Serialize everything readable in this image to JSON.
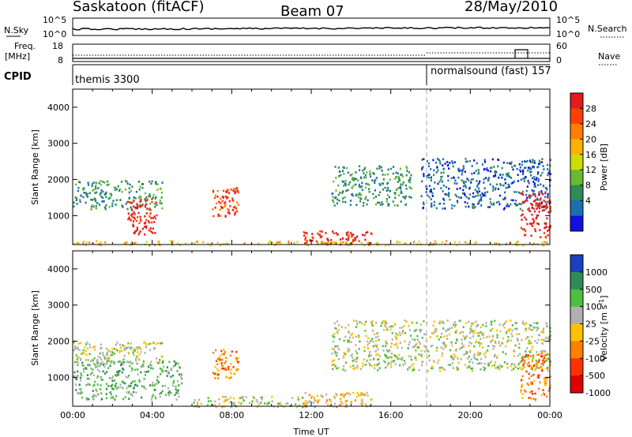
{
  "header": {
    "station": "Saskatoon (fitACF)",
    "beam": "Beam 07",
    "date": "28/May/2010"
  },
  "strip": {
    "nsky_label": "N.Sky",
    "nsky_ticks": [
      "10^5",
      "10^0"
    ],
    "nsearch_label": "N.Search",
    "nsearch_ticks": [
      "10^5",
      "10^0"
    ],
    "freq_label_line1": "Freq.",
    "freq_label_line2": "[MHz]",
    "freq_ticks": [
      "18",
      "8"
    ],
    "nave_label": "Nave",
    "nave_ticks": [
      "60",
      "0"
    ],
    "cpid_label": "CPID",
    "cpid_left": "themis 3300",
    "cpid_right": "normalsound (fast) 157"
  },
  "chart_data": [
    {
      "type": "heatmap",
      "name": "power",
      "ylabel": "Slant Range [km]",
      "ylim": [
        200,
        4500
      ],
      "yticks": [
        "1000",
        "2000",
        "3000",
        "4000"
      ],
      "xlim": [
        0,
        24
      ],
      "colorbar_label": "Power [dB]",
      "colorbar_ticks": [
        "28",
        "24",
        "20",
        "16",
        "12",
        "8",
        "4"
      ],
      "colorbar_colors": [
        "#e41a1c",
        "#ff4000",
        "#ff7f00",
        "#ffb000",
        "#ccdd00",
        "#66bb33",
        "#2e8b57",
        "#1a6fb0",
        "#1010e0"
      ],
      "regions": [
        {
          "t0": 0.0,
          "t1": 4.5,
          "r0": 1200,
          "r1": 2000,
          "level": 2
        },
        {
          "t0": 2.7,
          "t1": 4.2,
          "r0": 500,
          "r1": 1500,
          "level": 8
        },
        {
          "t0": 7.0,
          "t1": 8.3,
          "r0": 1000,
          "r1": 1800,
          "level": 7
        },
        {
          "t0": 11.5,
          "t1": 15.0,
          "r0": 220,
          "r1": 600,
          "level": 8
        },
        {
          "t0": 13.0,
          "t1": 17.0,
          "r0": 1300,
          "r1": 2400,
          "level": 2
        },
        {
          "t0": 17.5,
          "t1": 24.0,
          "r0": 1200,
          "r1": 2600,
          "level": 1
        },
        {
          "t0": 22.5,
          "t1": 24.0,
          "r0": 400,
          "r1": 1700,
          "level": 8
        },
        {
          "t0": 0.0,
          "t1": 24.0,
          "r0": 200,
          "r1": 320,
          "level": 5
        }
      ]
    },
    {
      "type": "heatmap",
      "name": "velocity",
      "ylabel": "Slant Range [km]",
      "ylim": [
        200,
        4500
      ],
      "yticks": [
        "1000",
        "2000",
        "3000",
        "4000"
      ],
      "xlim": [
        0,
        24
      ],
      "xticks": [
        "00:00",
        "04:00",
        "08:00",
        "12:00",
        "16:00",
        "20:00",
        "00:00"
      ],
      "xlabel": "Time UT",
      "colorbar_label": "Velocity [m s",
      "colorbar_label_sup": "-1",
      "colorbar_ticks": [
        "1000",
        "500",
        "100",
        "25",
        "-25",
        "-100",
        "-500",
        "-1000"
      ],
      "colorbar_colors": [
        "#1a3fc0",
        "#2e8b57",
        "#4fbf3f",
        "#b0b0b0",
        "#ffc000",
        "#ff8000",
        "#ff3000",
        "#e00000"
      ],
      "regions": [
        {
          "t0": 0.0,
          "t1": 5.5,
          "r0": 400,
          "r1": 1500,
          "level": 2
        },
        {
          "t0": 0.0,
          "t1": 4.5,
          "r0": 1400,
          "r1": 2000,
          "level": 3
        },
        {
          "t0": 6.0,
          "t1": 12.0,
          "r0": 200,
          "r1": 500,
          "level": 3
        },
        {
          "t0": 7.0,
          "t1": 8.3,
          "r0": 1000,
          "r1": 1800,
          "level": 5
        },
        {
          "t0": 11.5,
          "t1": 15.0,
          "r0": 200,
          "r1": 600,
          "level": 4
        },
        {
          "t0": 13.0,
          "t1": 24.0,
          "r0": 1200,
          "r1": 2600,
          "level": 3
        },
        {
          "t0": 22.5,
          "t1": 24.0,
          "r0": 400,
          "r1": 1700,
          "level": 5
        }
      ]
    }
  ]
}
